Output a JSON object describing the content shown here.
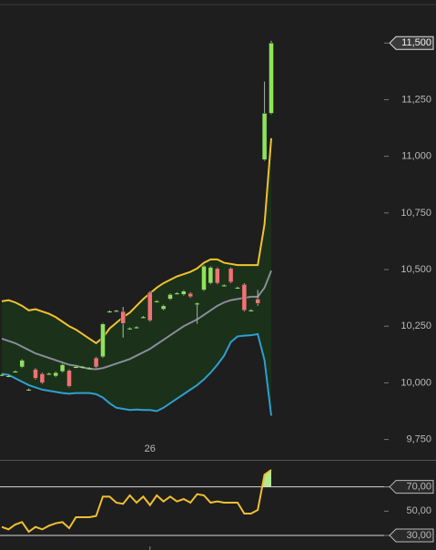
{
  "chart_data": [
    {
      "type": "candlestick",
      "categories": [
        null,
        null,
        null,
        null,
        null,
        null,
        null,
        null,
        null,
        null,
        null,
        null,
        null,
        null,
        null,
        null,
        null,
        null,
        null,
        null,
        null,
        null,
        "26",
        null,
        null,
        null,
        null,
        null,
        null,
        null,
        null,
        null,
        null,
        null,
        null,
        null,
        null,
        null,
        null,
        null,
        null
      ],
      "open": [
        10035,
        10030,
        10050,
        10070,
        9970,
        10060,
        10040,
        10040,
        10030,
        10050,
        10055,
        10070,
        10070,
        10065,
        10110,
        10115,
        10315,
        10318,
        10315,
        10240,
        10245,
        10290,
        10400,
        10360,
        10325,
        10370,
        10395,
        10390,
        10395,
        10350,
        10410,
        10440,
        10505,
        10430,
        10505,
        10420,
        10435,
        10320,
        10370,
        10985,
        11190
      ],
      "high": [
        10040,
        10035,
        10055,
        10105,
        9975,
        10065,
        10045,
        10045,
        10050,
        10085,
        10060,
        10075,
        10075,
        10070,
        10115,
        10265,
        10320,
        10322,
        10335,
        10245,
        10250,
        10295,
        10405,
        10365,
        10345,
        10395,
        10400,
        10410,
        10400,
        10355,
        10520,
        10515,
        10510,
        10435,
        10510,
        10425,
        10440,
        10325,
        10410,
        11330,
        11510
      ],
      "low": [
        10030,
        10025,
        10045,
        10065,
        9965,
        10015,
        9995,
        10035,
        10025,
        10045,
        9980,
        10065,
        10065,
        10060,
        10065,
        10110,
        10310,
        10314,
        10200,
        10235,
        10240,
        10285,
        10270,
        10355,
        10320,
        10365,
        10390,
        10385,
        10375,
        10260,
        10405,
        10435,
        10435,
        10425,
        10440,
        10415,
        10315,
        10315,
        10340,
        10980,
        11185
      ],
      "close": [
        10035,
        10030,
        10050,
        10100,
        9970,
        10020,
        10000,
        10040,
        10045,
        10080,
        9985,
        10070,
        10070,
        10065,
        10070,
        10260,
        10315,
        10318,
        10262,
        10240,
        10245,
        10290,
        10275,
        10360,
        10340,
        10390,
        10395,
        10405,
        10380,
        10350,
        10515,
        10510,
        10440,
        10430,
        10445,
        10420,
        10320,
        10320,
        10350,
        11190,
        11500
      ],
      "up_color": "#8fe35a",
      "down_color": "#f07373",
      "series": [
        {
          "color": "#f2c230",
          "values": [
            10360,
            10365,
            10355,
            10340,
            10320,
            10325,
            10315,
            10305,
            10290,
            10270,
            10250,
            10235,
            10215,
            10195,
            10175,
            10200,
            10240,
            10265,
            10290,
            10310,
            10340,
            10370,
            10395,
            10420,
            10440,
            10455,
            10470,
            10480,
            10490,
            10505,
            10530,
            10545,
            10545,
            10530,
            10525,
            10520,
            10520,
            10520,
            10520,
            10700,
            11080
          ]
        },
        {
          "color": "#8a8c9c",
          "values": [
            10195,
            10185,
            10175,
            10160,
            10145,
            10130,
            10120,
            10110,
            10100,
            10090,
            10080,
            10075,
            10068,
            10062,
            10060,
            10065,
            10075,
            10085,
            10095,
            10105,
            10120,
            10135,
            10150,
            10170,
            10190,
            10210,
            10230,
            10250,
            10265,
            10280,
            10300,
            10320,
            10340,
            10355,
            10365,
            10370,
            10375,
            10380,
            10380,
            10420,
            10495
          ]
        },
        {
          "color": "#2e9fcf",
          "values": [
            10040,
            10035,
            10020,
            10005,
            9990,
            9980,
            9970,
            9965,
            9960,
            9955,
            9952,
            9955,
            9955,
            9955,
            9950,
            9935,
            9910,
            9890,
            9885,
            9880,
            9882,
            9880,
            9880,
            9875,
            9890,
            9910,
            9930,
            9950,
            9970,
            9990,
            10015,
            10045,
            10080,
            10120,
            10180,
            10205,
            10208,
            10210,
            10215,
            10100,
            9855
          ]
        }
      ],
      "band_fill": "#1b3119",
      "ylim": [
        9660,
        11670
      ],
      "yticks": [
        {
          "value": 9750,
          "label": "9,750"
        },
        {
          "value": 10000,
          "label": "10,000"
        },
        {
          "value": 10250,
          "label": "10,250"
        },
        {
          "value": 10500,
          "label": "10,500"
        },
        {
          "value": 10750,
          "label": "10,750"
        },
        {
          "value": 11000,
          "label": "11,000"
        },
        {
          "value": 11250,
          "label": "11,250"
        },
        {
          "value": 11500,
          "label": "11,500"
        }
      ]
    },
    {
      "type": "line",
      "values": [
        37,
        35,
        39,
        41,
        33,
        37,
        35,
        38,
        40,
        41,
        36,
        45,
        45,
        45,
        46,
        62,
        62,
        57,
        56,
        63,
        57,
        62,
        55,
        63,
        58,
        62,
        58,
        60,
        57,
        64,
        63,
        57,
        58,
        57,
        57,
        57,
        48,
        48,
        51,
        80,
        84
      ],
      "color": "#f0c030",
      "over_fill": "#b6e88f",
      "levels": [
        70,
        30
      ],
      "ylim": [
        21,
        91.5
      ],
      "yticks": [
        {
          "value": 30,
          "label": "30,00"
        },
        {
          "value": 50,
          "label": "50,00"
        },
        {
          "value": 70,
          "label": "70,00"
        }
      ]
    }
  ]
}
